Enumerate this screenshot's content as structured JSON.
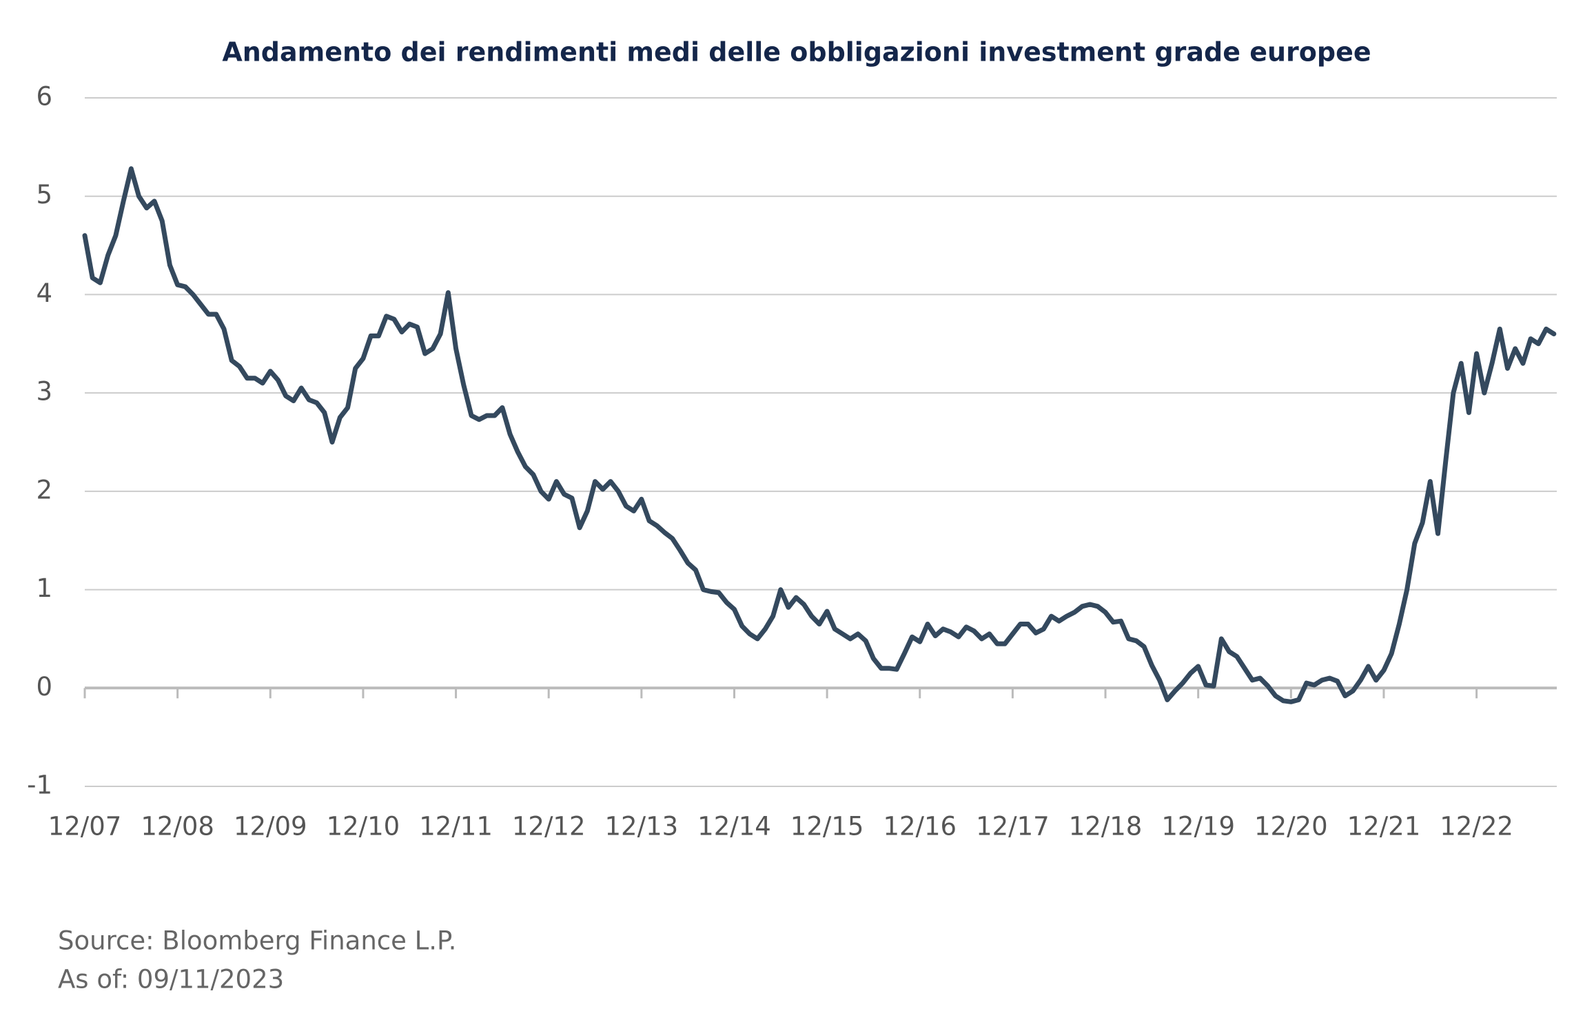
{
  "chart_data": {
    "type": "line",
    "title": "Andamento dei rendimenti medi delle obbligazioni investment grade europee",
    "source": "Source: Bloomberg Finance L.P.",
    "note": "As of: 09/11/2023",
    "categories": [
      "12/07",
      null,
      null,
      null,
      null,
      null,
      null,
      null,
      null,
      null,
      null,
      null,
      "12/08",
      null,
      null,
      null,
      null,
      null,
      null,
      null,
      null,
      null,
      null,
      null,
      "12/09",
      null,
      null,
      null,
      null,
      null,
      null,
      null,
      null,
      null,
      null,
      null,
      "12/10",
      null,
      null,
      null,
      null,
      null,
      null,
      null,
      null,
      null,
      null,
      null,
      "12/11",
      null,
      null,
      null,
      null,
      null,
      null,
      null,
      null,
      null,
      null,
      null,
      "12/12",
      null,
      null,
      null,
      null,
      null,
      null,
      null,
      null,
      null,
      null,
      null,
      "12/13",
      null,
      null,
      null,
      null,
      null,
      null,
      null,
      null,
      null,
      null,
      null,
      "12/14",
      null,
      null,
      null,
      null,
      null,
      null,
      null,
      null,
      null,
      null,
      null,
      "12/15",
      null,
      null,
      null,
      null,
      null,
      null,
      null,
      null,
      null,
      null,
      null,
      "12/16",
      null,
      null,
      null,
      null,
      null,
      null,
      null,
      null,
      null,
      null,
      null,
      "12/17",
      null,
      null,
      null,
      null,
      null,
      null,
      null,
      null,
      null,
      null,
      null,
      "12/18",
      null,
      null,
      null,
      null,
      null,
      null,
      null,
      null,
      null,
      null,
      null,
      "12/19",
      null,
      null,
      null,
      null,
      null,
      null,
      null,
      null,
      null,
      null,
      null,
      "12/20",
      null,
      null,
      null,
      null,
      null,
      null,
      null,
      null,
      null,
      null,
      null,
      "12/21",
      null,
      null,
      null,
      null,
      null,
      null,
      null,
      null,
      null,
      null,
      null,
      "12/22",
      null,
      null,
      null,
      null,
      null,
      null,
      null,
      null,
      null,
      null
    ],
    "series": [
      {
        "color": "#34495e",
        "values": [
          4.6,
          4.17,
          4.12,
          4.4,
          4.6,
          4.95,
          5.28,
          5.0,
          4.88,
          4.95,
          4.75,
          4.3,
          4.1,
          4.08,
          4.0,
          3.9,
          3.8,
          3.8,
          3.65,
          3.33,
          3.27,
          3.15,
          3.15,
          3.1,
          3.22,
          3.13,
          2.97,
          2.92,
          3.05,
          2.93,
          2.9,
          2.8,
          2.5,
          2.75,
          2.85,
          3.25,
          3.35,
          3.58,
          3.58,
          3.78,
          3.75,
          3.62,
          3.7,
          3.67,
          3.4,
          3.45,
          3.6,
          4.02,
          3.45,
          3.08,
          2.77,
          2.73,
          2.77,
          2.77,
          2.85,
          2.58,
          2.4,
          2.25,
          2.17,
          2.0,
          1.92,
          2.1,
          1.97,
          1.93,
          1.63,
          1.8,
          2.1,
          2.02,
          2.1,
          2.0,
          1.85,
          1.8,
          1.92,
          1.7,
          1.65,
          1.58,
          1.52,
          1.4,
          1.27,
          1.2,
          1.0,
          0.98,
          0.97,
          0.87,
          0.8,
          0.63,
          0.55,
          0.5,
          0.6,
          0.73,
          1.0,
          0.82,
          0.92,
          0.85,
          0.73,
          0.65,
          0.78,
          0.6,
          0.55,
          0.5,
          0.55,
          0.48,
          0.3,
          0.2,
          0.2,
          0.19,
          0.35,
          0.52,
          0.47,
          0.65,
          0.53,
          0.6,
          0.57,
          0.52,
          0.62,
          0.58,
          0.5,
          0.55,
          0.45,
          0.45,
          0.55,
          0.65,
          0.65,
          0.56,
          0.6,
          0.73,
          0.68,
          0.73,
          0.77,
          0.83,
          0.85,
          0.83,
          0.77,
          0.67,
          0.68,
          0.5,
          0.48,
          0.42,
          0.23,
          0.08,
          -0.12,
          -0.03,
          0.05,
          0.15,
          0.22,
          0.03,
          0.02,
          0.5,
          0.37,
          0.32,
          0.2,
          0.08,
          0.1,
          0.02,
          -0.08,
          -0.13,
          -0.14,
          -0.12,
          0.05,
          0.03,
          0.08,
          0.1,
          0.07,
          -0.08,
          -0.03,
          0.08,
          0.22,
          0.08,
          0.18,
          0.35,
          0.65,
          1.0,
          1.47,
          1.68,
          2.1,
          1.57,
          2.3,
          3.0,
          3.3,
          2.8,
          3.4,
          3.0,
          3.3,
          3.65,
          3.25,
          3.45,
          3.3,
          3.55,
          3.5,
          3.65,
          3.6
        ]
      }
    ],
    "ylim": [
      -1,
      6
    ],
    "yticks": [
      -1,
      0,
      1,
      2,
      3,
      4,
      5,
      6
    ],
    "grid": true
  }
}
